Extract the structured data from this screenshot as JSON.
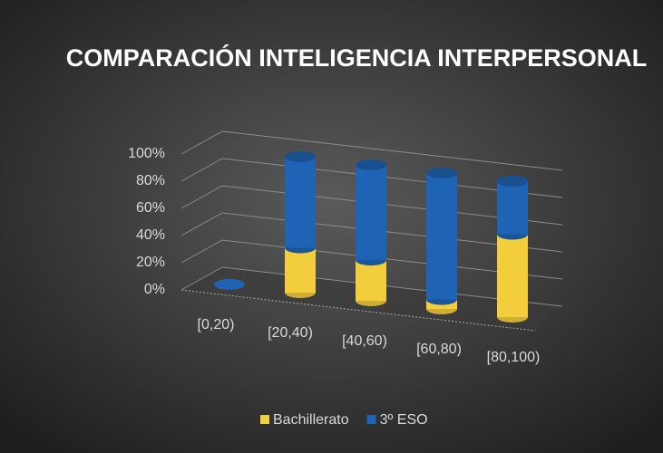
{
  "chart_data": {
    "type": "bar",
    "stacked": true,
    "title": "COMPARACIÓN INTELIGENCIA INTERPERSONAL",
    "categories": [
      "[0,20)",
      "[20,40)",
      "[40,60)",
      "[60,80)",
      "[80,100)"
    ],
    "series": [
      {
        "name": "Bachillerato",
        "color": "#f2cd3c",
        "values": [
          0,
          33,
          30,
          7,
          61
        ]
      },
      {
        "name": "3º ESO",
        "color": "#1f64b4",
        "values": [
          0,
          67,
          70,
          93,
          39
        ]
      }
    ],
    "ylim": [
      0,
      100
    ],
    "yticks": [
      {
        "value": 0,
        "label": "0%"
      },
      {
        "value": 20,
        "label": "20%"
      },
      {
        "value": 40,
        "label": "40%"
      },
      {
        "value": 60,
        "label": "60%"
      },
      {
        "value": 80,
        "label": "80%"
      },
      {
        "value": 100,
        "label": "100%"
      }
    ],
    "grid": true,
    "legend": "bottom"
  }
}
